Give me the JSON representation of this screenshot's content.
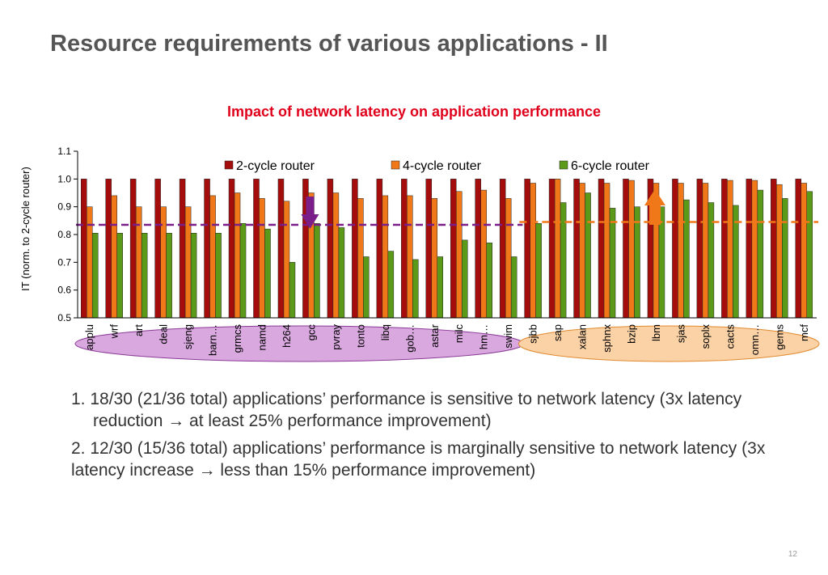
{
  "slide": {
    "title": "Resource requirements of various applications - II",
    "page_number": "12"
  },
  "bullets": [
    "1. 18/30 (21/36 total) applications’ performance is sensitive to network latency (3x latency reduction → at least 25% performance improvement)",
    "2. 12/30 (15/36 total) applications’ performance is marginally sensitive to network latency  (3x latency increase → less than 15% performance improvement)"
  ],
  "chart_data": {
    "type": "bar",
    "title": "Impact of network latency on application performance",
    "ylabel": "IT (norm. to 2-cycle router)",
    "xlabel": "",
    "ylim": [
      0.5,
      1.1
    ],
    "yticks": [
      "0.5",
      "0.6",
      "0.7",
      "0.8",
      "0.9",
      "1.0",
      "1.1"
    ],
    "legend_position": "top",
    "categories": [
      "applu",
      "wrf",
      "art",
      "deal",
      "sjeng",
      "barn…",
      "grmcs",
      "namd",
      "h264",
      "gcc",
      "pvray",
      "tonto",
      "libq",
      "gob…",
      "astar",
      "milc",
      "hm…",
      "swim",
      "sjbb",
      "sap",
      "xalan",
      "sphnx",
      "bzip",
      "lbm",
      "sjas",
      "soplx",
      "cacts",
      "omn…",
      "gems",
      "mcf"
    ],
    "series": [
      {
        "name": "2-cycle router",
        "color": "#a50d0d",
        "values": [
          1,
          1,
          1,
          1,
          1,
          1,
          1,
          1,
          1,
          1,
          1,
          1,
          1,
          1,
          1,
          1,
          1,
          1,
          1,
          1,
          1,
          1,
          1,
          1,
          1,
          1,
          1,
          1,
          1,
          1
        ]
      },
      {
        "name": "4-cycle router",
        "color": "#f07818",
        "values": [
          0.9,
          0.94,
          0.9,
          0.9,
          0.9,
          0.94,
          0.95,
          0.93,
          0.92,
          0.95,
          0.95,
          0.93,
          0.94,
          0.94,
          0.93,
          0.955,
          0.96,
          0.93,
          0.985,
          1.0,
          0.985,
          0.985,
          0.995,
          0.985,
          0.985,
          0.985,
          0.995,
          0.995,
          0.98,
          0.985
        ]
      },
      {
        "name": "6-cycle router",
        "color": "#5a9a18",
        "values": [
          0.805,
          0.805,
          0.805,
          0.805,
          0.805,
          0.805,
          0.84,
          0.82,
          0.7,
          0.84,
          0.825,
          0.72,
          0.74,
          0.71,
          0.72,
          0.78,
          0.77,
          0.72,
          0.84,
          0.915,
          0.95,
          0.895,
          0.9,
          0.9,
          0.925,
          0.915,
          0.905,
          0.96,
          0.93,
          0.955
        ]
      }
    ],
    "reference_lines": [
      {
        "value": 0.835,
        "from_index": 0,
        "to_index": 17,
        "color": "#7a1f8a"
      },
      {
        "value": 0.845,
        "from_index": 18,
        "to_index": 29,
        "color": "#f07818"
      }
    ],
    "arrows": [
      {
        "category_index": 9,
        "direction": "down",
        "color": "#7a1f8a"
      },
      {
        "category_index": 23,
        "direction": "up",
        "color": "#f07818"
      }
    ],
    "groups": [
      {
        "from_index": 0,
        "to_index": 17,
        "fill": "#d9a8df",
        "stroke": "#8a3a96"
      },
      {
        "from_index": 18,
        "to_index": 29,
        "fill": "#fbd2a5",
        "stroke": "#e08a30"
      }
    ]
  }
}
